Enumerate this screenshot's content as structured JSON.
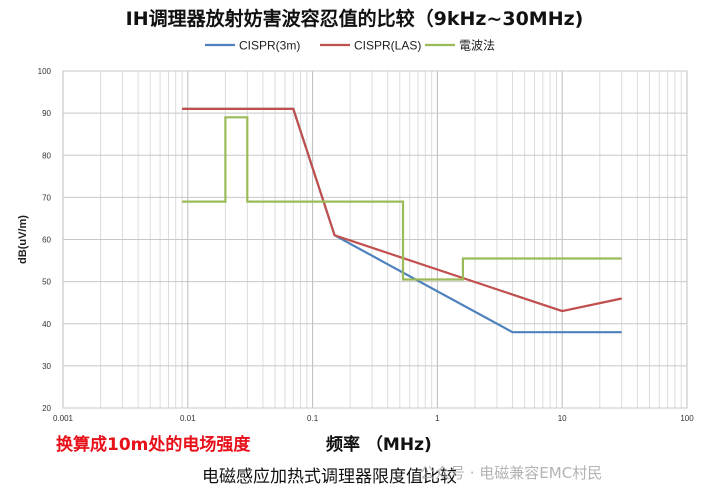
{
  "chart_data": {
    "type": "line",
    "title": "IH调理器放射妨害波容忍值的比较（9kHz~30MHz)",
    "xlabel": "频率 （MHz)",
    "ylabel": "dB(uV/m)",
    "x_scale": "log",
    "xlim": [
      0.001,
      100
    ],
    "ylim": [
      20,
      100
    ],
    "x_ticks": [
      "0.001",
      "0.01",
      "0.1",
      "1",
      "10",
      "100"
    ],
    "y_ticks": [
      "20",
      "30",
      "40",
      "50",
      "60",
      "70",
      "80",
      "90",
      "100"
    ],
    "grid": true,
    "legend_position": "top",
    "series": [
      {
        "name": "CISPR(3m)",
        "color": "#4f81bd",
        "points": [
          [
            0.009,
            91
          ],
          [
            0.07,
            91
          ],
          [
            0.15,
            61
          ],
          [
            4,
            38
          ],
          [
            30,
            38
          ]
        ]
      },
      {
        "name": "CISPR(LAS)",
        "color": "#c0504d",
        "points": [
          [
            0.009,
            91
          ],
          [
            0.07,
            91
          ],
          [
            0.15,
            61
          ],
          [
            10,
            43
          ],
          [
            30,
            46
          ]
        ]
      },
      {
        "name": "電波法",
        "color": "#9bbb59",
        "points": [
          [
            0.009,
            69
          ],
          [
            0.02,
            69
          ],
          [
            0.02,
            89
          ],
          [
            0.03,
            89
          ],
          [
            0.03,
            69
          ],
          [
            0.53,
            69
          ],
          [
            0.53,
            50.5
          ],
          [
            1.6,
            50.5
          ],
          [
            1.6,
            55.5
          ],
          [
            30,
            55.5
          ]
        ]
      }
    ]
  },
  "annotations": {
    "conversion_note": "换算成10m处的电场强度",
    "caption": "电磁感应加热式调理器限度值比较",
    "watermark": "公众号 · 电磁兼容EMC村民"
  }
}
